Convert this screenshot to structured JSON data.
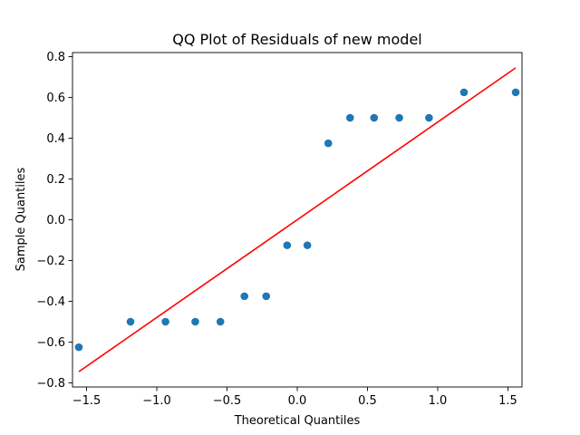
{
  "chart_data": {
    "type": "scatter",
    "title": "QQ Plot of Residuals of new model",
    "xlabel": "Theoretical Quantiles",
    "ylabel": "Sample Quantiles",
    "xlim": [
      -1.6,
      1.6
    ],
    "ylim": [
      -0.82,
      0.82
    ],
    "xticks": [
      -1.5,
      -1.0,
      -0.5,
      0.0,
      0.5,
      1.0,
      1.5
    ],
    "xtick_labels": [
      "−1.5",
      "−1.0",
      "−0.5",
      "0.0",
      "0.5",
      "1.0",
      "1.5"
    ],
    "yticks": [
      -0.8,
      -0.6,
      -0.4,
      -0.2,
      0.0,
      0.2,
      0.4,
      0.6,
      0.8
    ],
    "ytick_labels": [
      "−0.8",
      "−0.6",
      "−0.4",
      "−0.2",
      "0.0",
      "0.2",
      "0.4",
      "0.6",
      "0.8"
    ],
    "grid": false,
    "series": [
      {
        "kind": "points",
        "color": "#1f77b4",
        "x": [
          -1.555,
          -1.187,
          -0.938,
          -0.726,
          -0.547,
          -0.376,
          -0.221,
          -0.072,
          0.072,
          0.221,
          0.376,
          0.547,
          0.726,
          0.938,
          1.187,
          1.555
        ],
        "y": [
          -0.625,
          -0.5,
          -0.5,
          -0.5,
          -0.5,
          -0.375,
          -0.375,
          -0.125,
          -0.125,
          0.375,
          0.5,
          0.5,
          0.5,
          0.5,
          0.625,
          0.625
        ]
      },
      {
        "kind": "line",
        "color": "#ff0000",
        "x": [
          -1.555,
          1.555
        ],
        "y": [
          -0.745,
          0.745
        ]
      }
    ]
  }
}
